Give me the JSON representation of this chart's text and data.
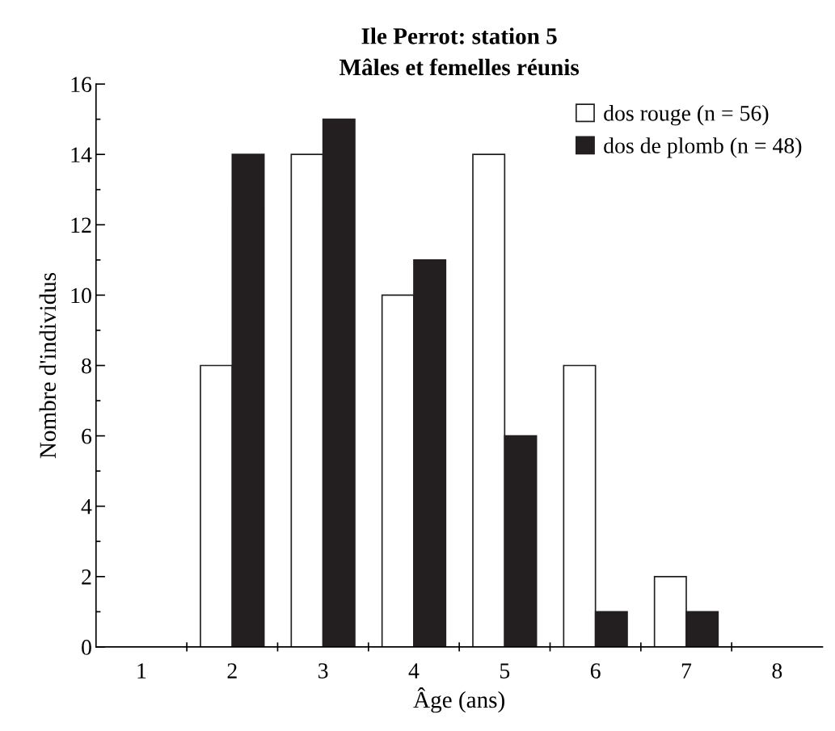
{
  "chart_data": {
    "type": "bar",
    "title": "Ile Perrot: station 5\nMâles et femelles réunis",
    "xlabel": "Âge (ans)",
    "ylabel": "Nombre d'individus",
    "categories": [
      "1",
      "2",
      "3",
      "4",
      "5",
      "6",
      "7",
      "8"
    ],
    "series": [
      {
        "name": "dos rouge (n = 56)",
        "color": "#ffffff",
        "values": [
          0,
          8,
          14,
          10,
          14,
          8,
          2,
          0
        ]
      },
      {
        "name": "dos de plomb (n = 48)",
        "color": "#231f20",
        "values": [
          0,
          14,
          15,
          11,
          6,
          1,
          1,
          0
        ]
      }
    ],
    "ylim": [
      0,
      16
    ],
    "yticks": [
      0,
      2,
      4,
      6,
      8,
      10,
      12,
      14,
      16
    ],
    "grid": false,
    "legend": "top right"
  }
}
